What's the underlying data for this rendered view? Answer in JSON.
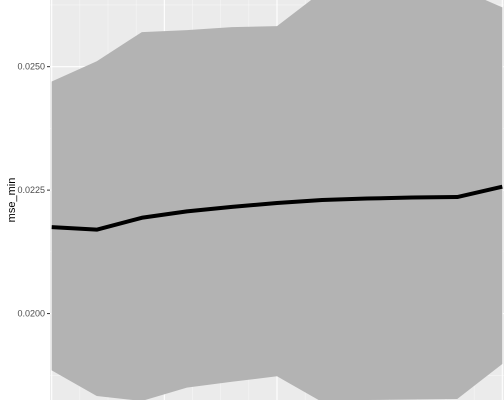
{
  "chart_data": {
    "type": "line",
    "title": "",
    "xlabel": "",
    "ylabel": "mse_min",
    "y_ticks": [
      {
        "value": 0.02,
        "label": "0.0200"
      },
      {
        "value": 0.0225,
        "label": "0.0225"
      },
      {
        "value": 0.025,
        "label": "0.0250"
      }
    ],
    "ylim": [
      0.01825,
      0.02635
    ],
    "xlim": [
      -0.03,
      8.03
    ],
    "grid": true,
    "series": [
      {
        "name": "mse_min",
        "x": [
          0,
          0.8,
          1.6,
          2.4,
          3.2,
          4.0,
          4.8,
          5.6,
          6.4,
          7.2,
          8.0
        ],
        "values": [
          0.02175,
          0.0217,
          0.02194,
          0.02207,
          0.02216,
          0.02224,
          0.0223,
          0.02233,
          0.02235,
          0.02236,
          0.02257
        ],
        "lower": [
          0.01885,
          0.01833,
          0.01823,
          0.0185,
          0.01862,
          0.01873,
          0.01821,
          0.01825,
          0.01826,
          0.01827,
          0.01898
        ],
        "upper": [
          0.0247,
          0.02511,
          0.0257,
          0.02574,
          0.0258,
          0.02582,
          0.02652,
          0.02675,
          0.0267,
          0.0266,
          0.0262
        ]
      }
    ]
  },
  "colors": {
    "panel": "#ebebeb",
    "grid_major": "#ffffff",
    "ribbon": "#b3b3b3",
    "line": "#000000"
  }
}
